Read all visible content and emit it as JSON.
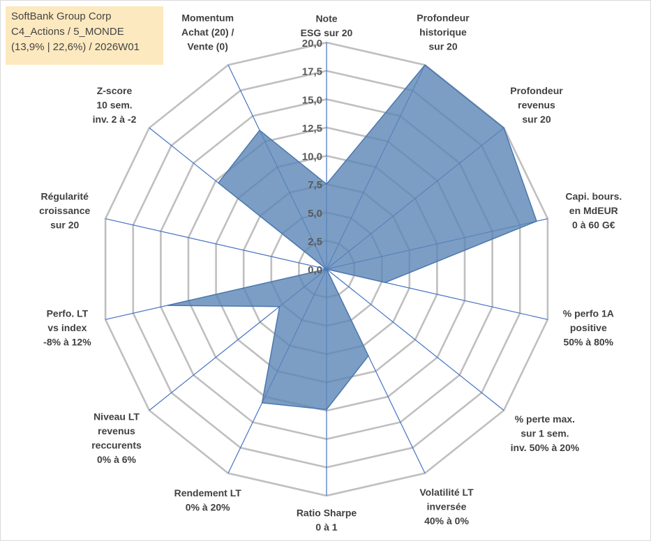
{
  "info": {
    "company": "SoftBank Group Corp",
    "category": "C4_Actions / 5_MONDE",
    "stats": "(13,9% | 22,6%) / 2026W01"
  },
  "chart_data": {
    "type": "radar",
    "rmin": 0,
    "rmax": 20,
    "ticks": [
      "0,0",
      "2,5",
      "5,0",
      "7,5",
      "10,0",
      "12,5",
      "15,0",
      "17,5",
      "20,0"
    ],
    "tick_values": [
      0,
      2.5,
      5,
      7.5,
      10,
      12.5,
      15,
      17.5,
      20
    ],
    "axes": [
      {
        "lines": [
          "Note",
          "ESG sur 20"
        ],
        "value": 7.5
      },
      {
        "lines": [
          "Profondeur",
          "historique",
          "sur 20"
        ],
        "value": 20
      },
      {
        "lines": [
          "Profondeur",
          "revenus",
          "sur 20"
        ],
        "value": 20
      },
      {
        "lines": [
          "Capi. bours.",
          "en MdEUR",
          "0 à 60 G€"
        ],
        "value": 19
      },
      {
        "lines": [
          "% perfo 1A",
          "positive",
          "50% à 80%"
        ],
        "value": 5.3
      },
      {
        "lines": [
          "% perte max.",
          "sur 1 sem.",
          "inv. 50% à 20%"
        ],
        "value": 0
      },
      {
        "lines": [
          "Volatilité LT",
          "inversée",
          "40% à 0%"
        ],
        "value": 8.5
      },
      {
        "lines": [
          "Ratio Sharpe",
          "0 à 1"
        ],
        "value": 12.4
      },
      {
        "lines": [
          "Rendement LT",
          "0% à 20%"
        ],
        "value": 13.1
      },
      {
        "lines": [
          "Niveau LT",
          "revenus",
          "reccurents",
          "0% à 6%"
        ],
        "value": 5.3
      },
      {
        "lines": [
          "Perfo. LT",
          "vs index",
          "-8% à 12%"
        ],
        "value": 14.4
      },
      {
        "lines": [
          "Régularité",
          "croissance",
          "sur 20"
        ],
        "value": 0
      },
      {
        "lines": [
          "Z-score",
          "10 sem.",
          "inv. 2 à -2"
        ],
        "value": 12.2
      },
      {
        "lines": [
          "Momentum",
          "Achat (20) /",
          "Vente (0)"
        ],
        "value": 13.6
      }
    ],
    "series": [
      {
        "name": "SoftBank Group Corp",
        "color": "#5b86b6"
      }
    ]
  }
}
